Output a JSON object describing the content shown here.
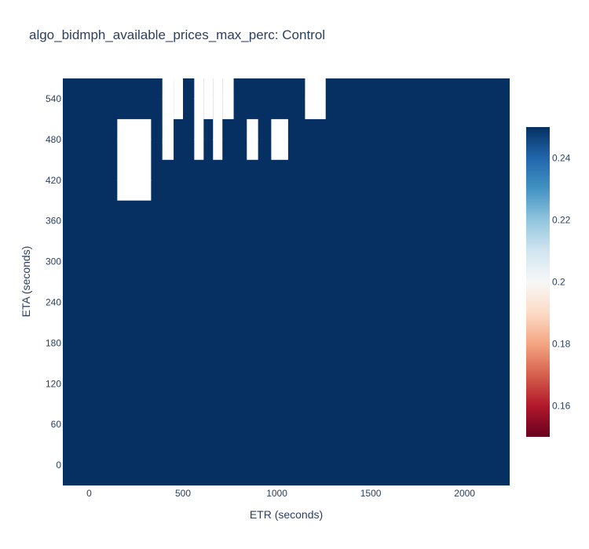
{
  "chart_data": {
    "type": "heatmap",
    "title": "algo_bidmph_available_prices_max_perc: Control",
    "xlabel": "ETR (seconds)",
    "ylabel": "ETA (seconds)",
    "xlim": [
      -140,
      2240
    ],
    "ylim": [
      -30,
      570
    ],
    "xticks": [
      0,
      500,
      1000,
      1500,
      2000
    ],
    "xtick_labels": [
      "0",
      "500",
      "1000",
      "1500",
      "2000"
    ],
    "yticks": [
      0,
      60,
      120,
      180,
      240,
      300,
      360,
      420,
      480,
      540
    ],
    "ytick_labels": [
      "0",
      "60",
      "120",
      "180",
      "240",
      "300",
      "360",
      "420",
      "480",
      "540"
    ],
    "grid": false,
    "colorscale": "RdBu",
    "colorscale_stops": [
      "#67001f",
      "#b2182b",
      "#d6604d",
      "#f4a582",
      "#fddbc7",
      "#f7f7f7",
      "#d1e5f0",
      "#92c5de",
      "#4393c3",
      "#2166ac",
      "#053061"
    ],
    "zlim": [
      0.15,
      0.25
    ],
    "colorbar_ticks": [
      0.16,
      0.18,
      0.2,
      0.22,
      0.24
    ],
    "colorbar_tick_labels": [
      "0.16",
      "0.18",
      "0.2",
      "0.22",
      "0.24"
    ],
    "fill_value": 0.25,
    "fill_extent": {
      "x": [
        -140,
        2240
      ],
      "y": [
        -30,
        570
      ]
    },
    "missing_regions": [
      {
        "x": [
          150,
          330
        ],
        "y": [
          390,
          510
        ]
      },
      {
        "x": [
          390,
          450
        ],
        "y": [
          450,
          570
        ]
      },
      {
        "x": [
          450,
          500
        ],
        "y": [
          510,
          570
        ]
      },
      {
        "x": [
          560,
          610
        ],
        "y": [
          450,
          570
        ]
      },
      {
        "x": [
          610,
          660
        ],
        "y": [
          510,
          570
        ]
      },
      {
        "x": [
          660,
          710
        ],
        "y": [
          450,
          570
        ]
      },
      {
        "x": [
          710,
          770
        ],
        "y": [
          510,
          570
        ]
      },
      {
        "x": [
          840,
          900
        ],
        "y": [
          450,
          510
        ]
      },
      {
        "x": [
          970,
          1060
        ],
        "y": [
          450,
          510
        ]
      },
      {
        "x": [
          1150,
          1260
        ],
        "y": [
          510,
          570
        ]
      }
    ]
  }
}
